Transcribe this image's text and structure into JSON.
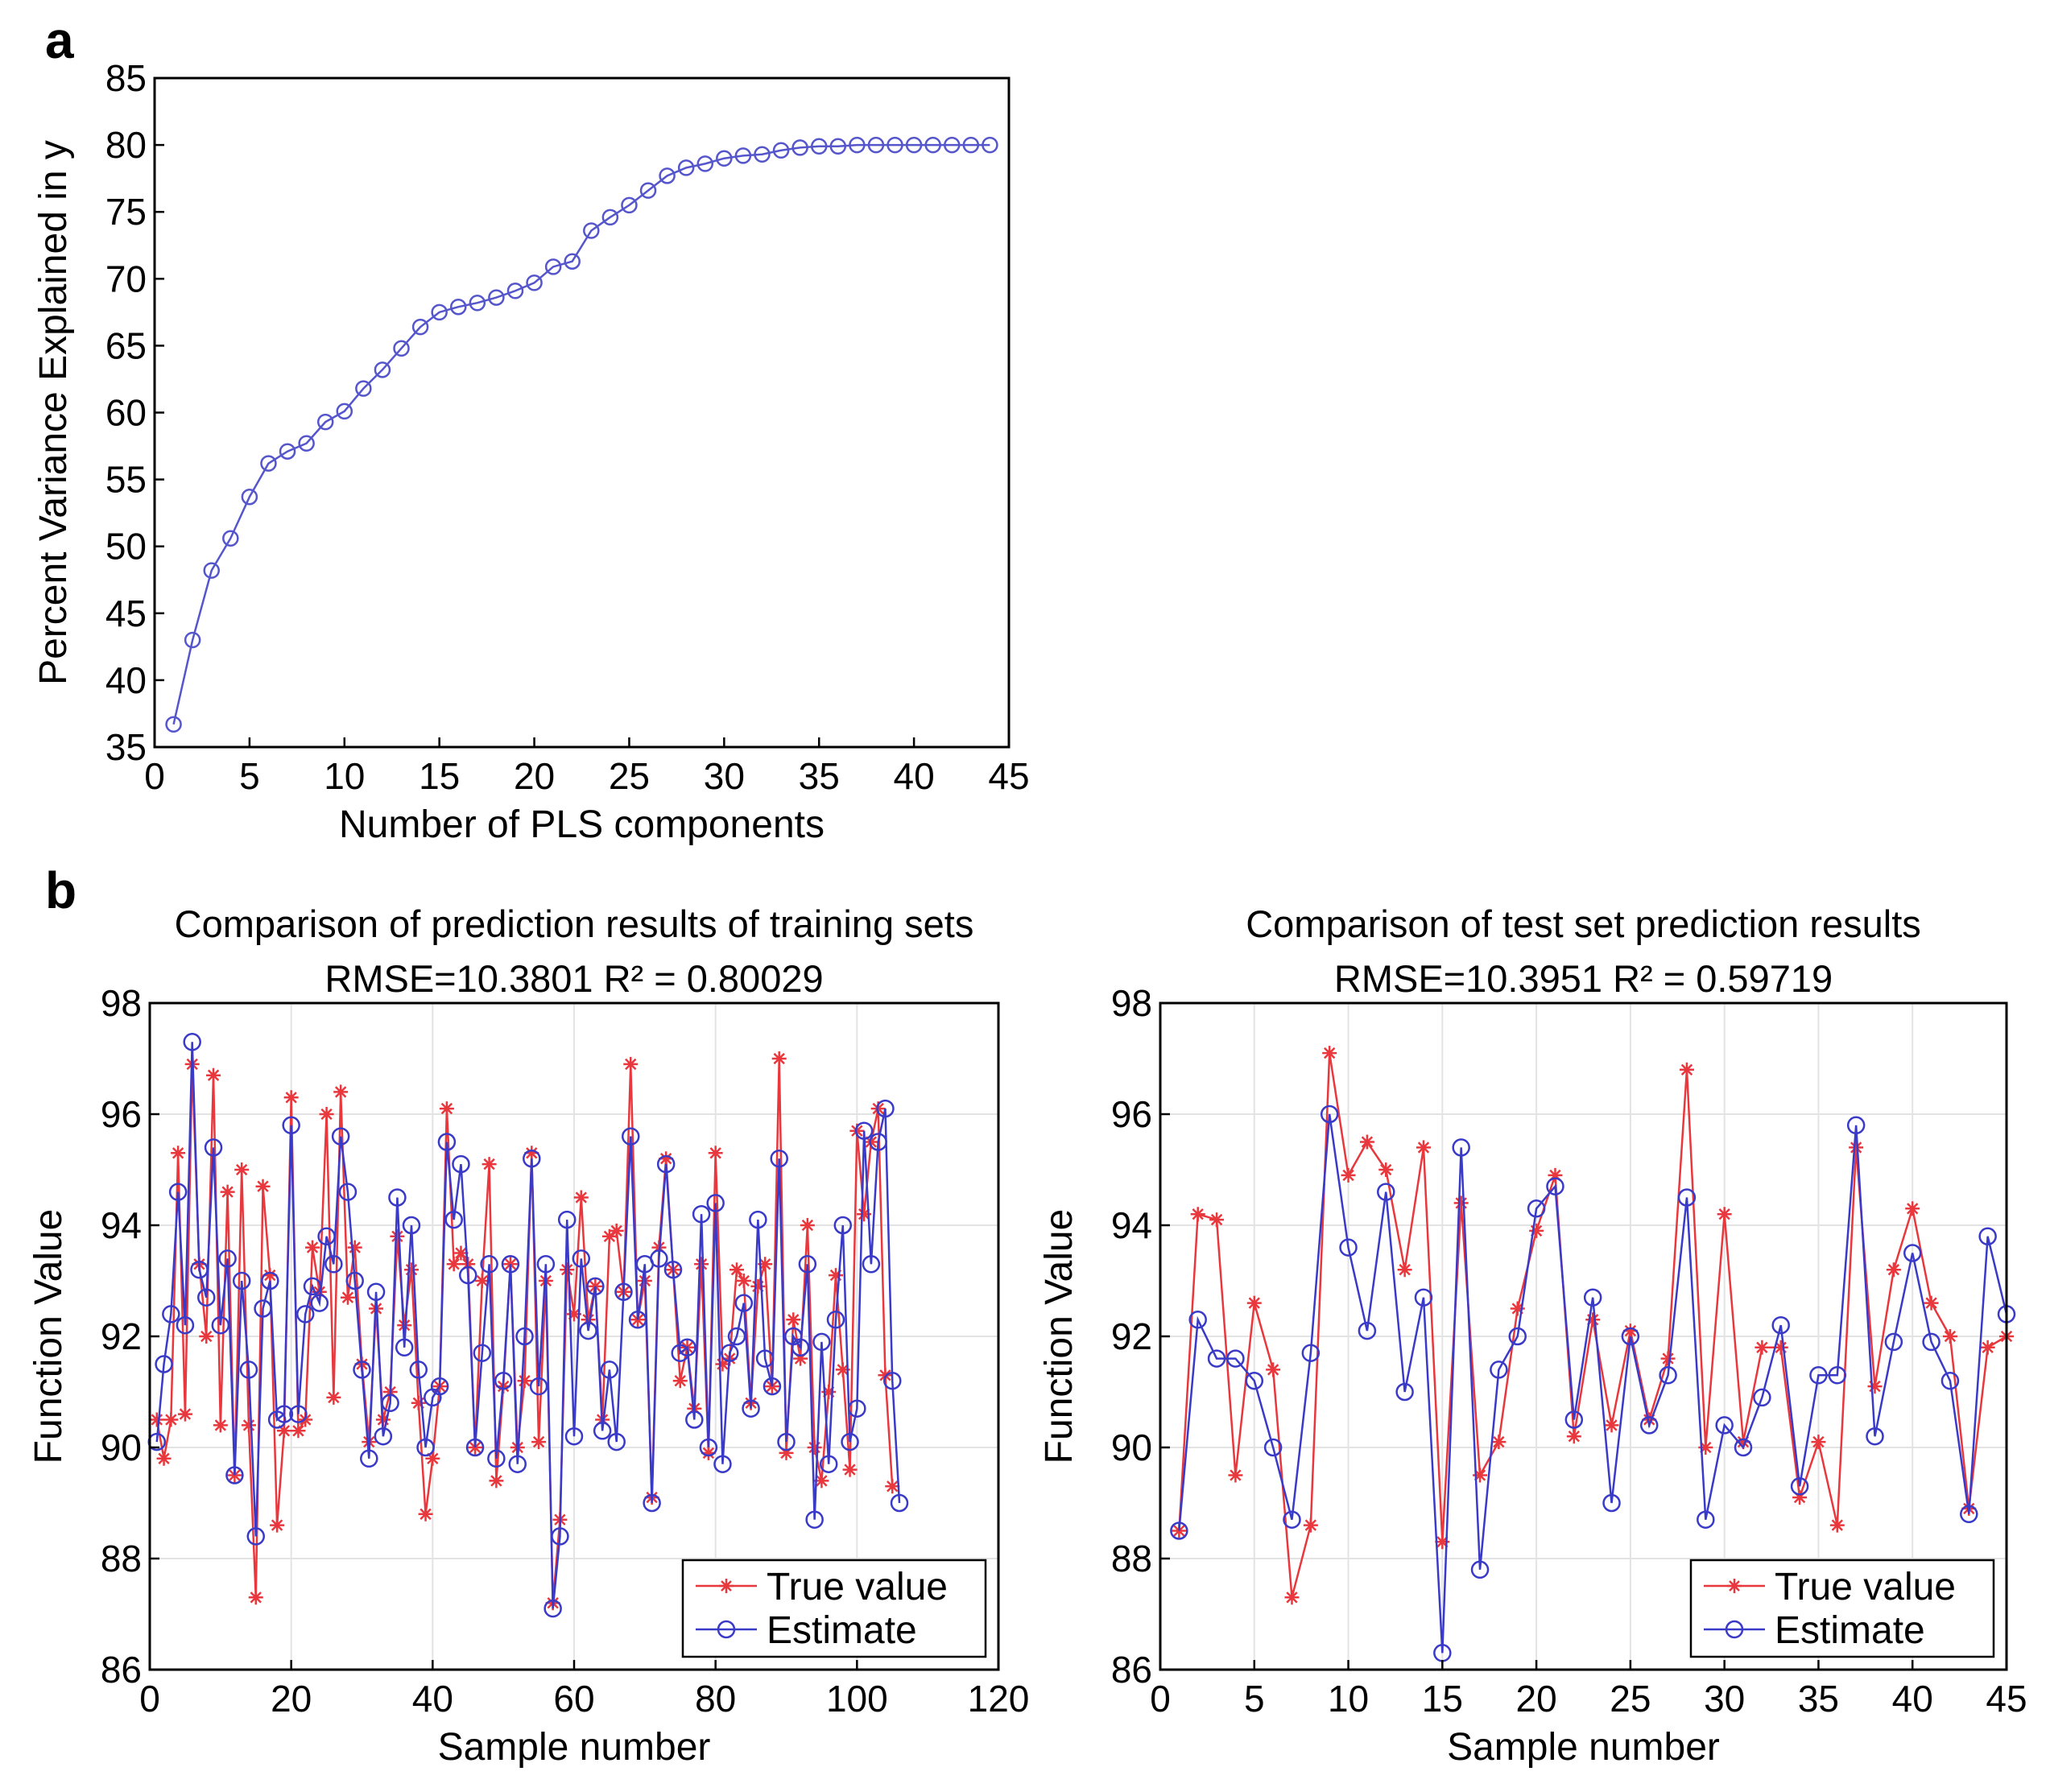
{
  "chart_data": [
    {
      "id": "a",
      "panel_label": "a",
      "type": "line",
      "xlabel": "Number of PLS components",
      "ylabel": "Percent Variance Explained in y",
      "xlim": [
        0,
        45
      ],
      "ylim": [
        35,
        85
      ],
      "xticks": [
        0,
        5,
        10,
        15,
        20,
        25,
        30,
        35,
        40,
        45
      ],
      "yticks": [
        35,
        40,
        45,
        50,
        55,
        60,
        65,
        70,
        75,
        80,
        85
      ],
      "grid": false,
      "series": [
        {
          "marker": "circle",
          "color": "#5555cc",
          "x": [
            1,
            2,
            3,
            4,
            5,
            6,
            7,
            8,
            9,
            10,
            11,
            12,
            13,
            14,
            15,
            16,
            17,
            18,
            19,
            20,
            21,
            22,
            23,
            24,
            25,
            26,
            27,
            28,
            29,
            30,
            31,
            32,
            33,
            34,
            35,
            36,
            37,
            38,
            39,
            40,
            41,
            42,
            43,
            44
          ],
          "y": [
            36.7,
            43.0,
            48.2,
            50.6,
            53.7,
            56.2,
            57.1,
            57.7,
            59.3,
            60.1,
            61.8,
            63.2,
            64.8,
            66.4,
            67.5,
            67.9,
            68.2,
            68.6,
            69.1,
            69.7,
            70.9,
            71.3,
            73.6,
            74.6,
            75.5,
            76.6,
            77.7,
            78.3,
            78.6,
            79.0,
            79.2,
            79.3,
            79.6,
            79.8,
            79.9,
            79.9,
            80.0,
            80.0,
            80.0,
            80.0,
            80.0,
            80.0,
            80.0,
            80.0
          ]
        }
      ]
    },
    {
      "id": "b1",
      "panel_label": "b",
      "type": "line",
      "title": "Comparison of prediction results of training sets",
      "subtitle": "RMSE=10.3801 R² = 0.80029",
      "xlabel": "Sample number",
      "ylabel": "Function Value",
      "xlim": [
        0,
        120
      ],
      "ylim": [
        86,
        98
      ],
      "xticks": [
        0,
        20,
        40,
        60,
        80,
        100,
        120
      ],
      "yticks": [
        86,
        88,
        90,
        92,
        94,
        96,
        98
      ],
      "grid": true,
      "legend_position": "bottom-right",
      "series": [
        {
          "name": "True value",
          "marker": "star",
          "color": "#e8383d",
          "values": [
            90.5,
            89.8,
            90.5,
            95.3,
            90.6,
            96.9,
            93.3,
            92.0,
            96.7,
            90.4,
            94.6,
            89.5,
            95.0,
            90.4,
            87.3,
            94.7,
            93.1,
            88.6,
            90.3,
            96.3,
            90.3,
            90.5,
            93.6,
            92.8,
            96.0,
            90.9,
            96.4,
            92.7,
            93.6,
            91.5,
            90.1,
            92.5,
            90.5,
            91.0,
            93.8,
            92.2,
            93.2,
            90.8,
            88.8,
            89.8,
            91.1,
            96.1,
            93.3,
            93.5,
            93.3,
            90.0,
            93.0,
            95.1,
            89.4,
            91.1,
            93.3,
            90.0,
            91.2,
            95.3,
            90.1,
            93.0,
            87.2,
            88.7,
            93.2,
            92.4,
            94.5,
            92.3,
            92.9,
            90.5,
            93.8,
            93.9,
            92.8,
            96.9,
            92.3,
            93.0,
            89.1,
            93.6,
            95.2,
            93.2,
            91.2,
            91.8,
            90.7,
            93.3,
            89.9,
            95.3,
            91.5,
            91.6,
            93.2,
            93.0,
            90.8,
            92.9,
            93.3,
            91.1,
            97.0,
            89.9,
            92.3,
            91.6,
            94.0,
            90.0,
            89.4,
            91.0,
            93.1,
            91.4,
            89.6,
            95.7,
            94.2,
            95.5,
            96.1,
            91.3,
            89.3
          ]
        },
        {
          "name": "Estimate",
          "marker": "circle",
          "color": "#3a3ac8",
          "values": [
            90.1,
            91.5,
            92.4,
            94.6,
            92.2,
            97.3,
            93.2,
            92.7,
            95.4,
            92.2,
            93.4,
            89.5,
            93.0,
            91.4,
            88.4,
            92.5,
            93.0,
            90.5,
            90.6,
            95.8,
            90.6,
            92.4,
            92.9,
            92.6,
            93.8,
            93.3,
            95.6,
            94.6,
            93.0,
            91.4,
            89.8,
            92.8,
            90.2,
            90.8,
            94.5,
            91.8,
            94.0,
            91.4,
            90.0,
            90.9,
            91.1,
            95.5,
            94.1,
            95.1,
            93.1,
            90.0,
            91.7,
            93.3,
            89.8,
            91.2,
            93.3,
            89.7,
            92.0,
            95.2,
            91.1,
            93.3,
            87.1,
            88.4,
            94.1,
            90.2,
            93.4,
            92.1,
            92.9,
            90.3,
            91.4,
            90.1,
            92.8,
            95.6,
            92.3,
            93.3,
            89.0,
            93.4,
            95.1,
            93.2,
            91.7,
            91.8,
            90.5,
            94.2,
            90.0,
            94.4,
            89.7,
            91.7,
            92.0,
            92.6,
            90.7,
            94.1,
            91.6,
            91.1,
            95.2,
            90.1,
            92.0,
            91.8,
            93.3,
            88.7,
            91.9,
            89.7,
            92.3,
            94.0,
            90.1,
            90.7,
            95.7,
            93.3,
            95.5,
            96.1,
            91.2,
            89.0
          ]
        }
      ]
    },
    {
      "id": "b2",
      "panel_label": "",
      "type": "line",
      "title": "Comparison of test set prediction results",
      "subtitle": "RMSE=10.3951  R² = 0.59719",
      "xlabel": "Sample number",
      "ylabel": "Function Value",
      "xlim": [
        0,
        45
      ],
      "ylim": [
        86,
        98
      ],
      "xticks": [
        0,
        5,
        10,
        15,
        20,
        25,
        30,
        35,
        40,
        45
      ],
      "yticks": [
        86,
        88,
        90,
        92,
        94,
        96,
        98
      ],
      "grid": true,
      "legend_position": "bottom-right",
      "series": [
        {
          "name": "True value",
          "marker": "star",
          "color": "#e8383d",
          "values": [
            88.5,
            94.2,
            94.1,
            89.5,
            92.6,
            91.4,
            87.3,
            88.6,
            97.1,
            94.9,
            95.5,
            95.0,
            93.2,
            95.4,
            88.3,
            94.4,
            89.5,
            90.1,
            92.5,
            93.9,
            94.9,
            90.2,
            92.3,
            90.4,
            92.1,
            90.5,
            91.6,
            96.8,
            90.0,
            94.2,
            90.1,
            91.8,
            91.8,
            89.1,
            90.1,
            88.6,
            95.4,
            91.1,
            93.2,
            94.3,
            92.6,
            92.0,
            88.9,
            91.8,
            92.0
          ]
        },
        {
          "name": "Estimate",
          "marker": "circle",
          "color": "#3a3ac8",
          "values": [
            88.5,
            92.3,
            91.6,
            91.6,
            91.2,
            90.0,
            88.7,
            91.7,
            96.0,
            93.6,
            92.1,
            94.6,
            91.0,
            92.7,
            86.3,
            95.4,
            87.8,
            91.4,
            92.0,
            94.3,
            94.7,
            90.5,
            92.7,
            89.0,
            92.0,
            90.4,
            91.3,
            94.5,
            88.7,
            90.4,
            90.0,
            90.9,
            92.2,
            89.3,
            91.3,
            91.3,
            95.8,
            90.2,
            91.9,
            93.5,
            91.9,
            91.2,
            88.8,
            93.8,
            92.4
          ]
        }
      ]
    }
  ]
}
